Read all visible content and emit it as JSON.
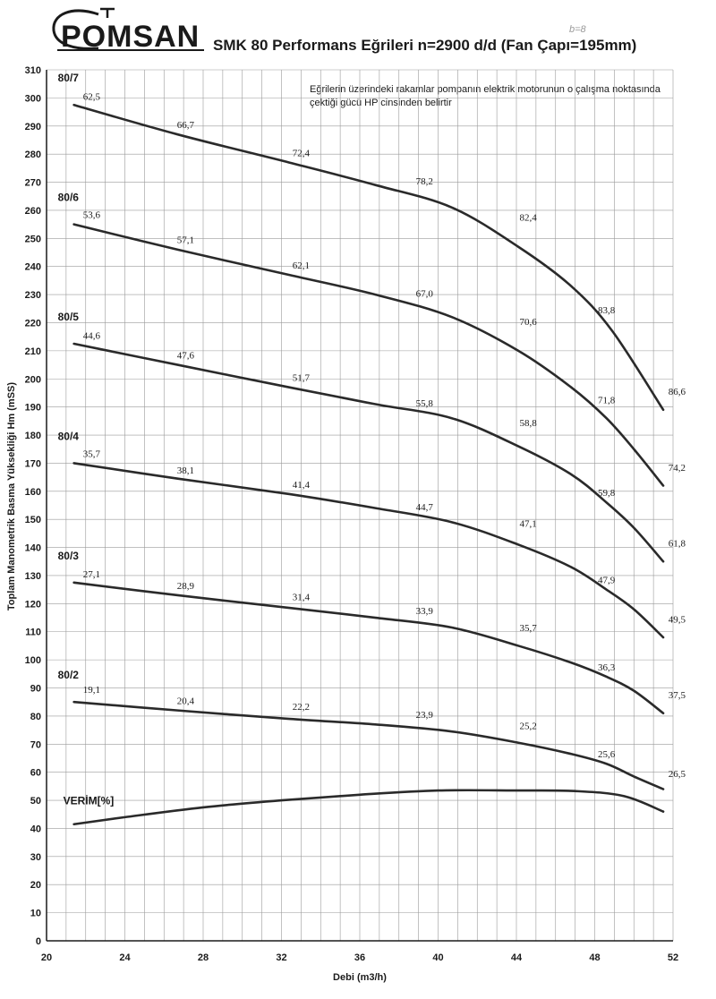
{
  "header": {
    "logo_text": "POMSAN",
    "title": "SMK 80 Performans Eğrileri  n=2900 d/d (Fan Çapı=195mm)",
    "handwritten_note": "b=8"
  },
  "note": {
    "line1": "Eğrilerin üzerindeki rakamlar pompanın elektrik motorunun  o çalışma noktasında",
    "line2": "çektiği gücü HP cinsinden belirtir"
  },
  "colors": {
    "curve": "#2a2a2a",
    "grid": "#9a9a9a",
    "background": "#ffffff"
  },
  "chart_data": {
    "type": "line",
    "title": "SMK 80 Performans Eğrileri  n=2900 d/d (Fan Çapı=195mm)",
    "xlabel": "Debi (m3/h)",
    "ylabel": "Toplam Manometrik Basma Yüksekliği Hm (mSS)",
    "xlim": [
      20,
      52
    ],
    "ylim": [
      0,
      310
    ],
    "x_ticks": [
      20,
      24,
      28,
      32,
      36,
      40,
      44,
      48,
      52
    ],
    "y_ticks": [
      0,
      10,
      20,
      30,
      40,
      50,
      60,
      70,
      80,
      90,
      100,
      110,
      120,
      130,
      140,
      150,
      160,
      170,
      180,
      190,
      200,
      210,
      220,
      230,
      240,
      250,
      260,
      270,
      280,
      290,
      300,
      310
    ],
    "grid": true,
    "series": [
      {
        "name": "80/7",
        "points": [
          [
            21.4,
            297.5
          ],
          [
            26.7,
            287
          ],
          [
            32.4,
            277
          ],
          [
            36.8,
            269
          ],
          [
            40.7,
            261
          ],
          [
            44.1,
            247
          ],
          [
            46.8,
            233
          ],
          [
            48.9,
            217
          ],
          [
            51.5,
            189
          ]
        ],
        "hp_labels": [
          {
            "x": 22.3,
            "y": 298,
            "text": "62,5"
          },
          {
            "x": 27.1,
            "y": 288,
            "text": "66,7"
          },
          {
            "x": 33.0,
            "y": 278,
            "text": "72,4"
          },
          {
            "x": 39.3,
            "y": 268,
            "text": "78,2"
          },
          {
            "x": 44.6,
            "y": 255,
            "text": "82,4"
          },
          {
            "x": 48.6,
            "y": 222,
            "text": "83,8"
          },
          {
            "x": 52.2,
            "y": 193,
            "text": "86,6"
          }
        ]
      },
      {
        "name": "80/6",
        "points": [
          [
            21.4,
            255
          ],
          [
            26.7,
            246
          ],
          [
            32.4,
            237
          ],
          [
            36.8,
            230
          ],
          [
            40.7,
            222
          ],
          [
            44.1,
            210
          ],
          [
            46.8,
            197
          ],
          [
            48.6,
            186
          ],
          [
            50.0,
            175
          ],
          [
            51.5,
            162
          ]
        ],
        "hp_labels": [
          {
            "x": 22.3,
            "y": 256,
            "text": "53,6"
          },
          {
            "x": 27.1,
            "y": 247,
            "text": "57,1"
          },
          {
            "x": 33.0,
            "y": 238,
            "text": "62,1"
          },
          {
            "x": 39.3,
            "y": 228,
            "text": "67,0"
          },
          {
            "x": 44.6,
            "y": 218,
            "text": "70,6"
          },
          {
            "x": 48.6,
            "y": 190,
            "text": "71,8"
          },
          {
            "x": 52.2,
            "y": 166,
            "text": "74,2"
          }
        ]
      },
      {
        "name": "80/5",
        "points": [
          [
            21.4,
            212.5
          ],
          [
            26.7,
            205
          ],
          [
            32.4,
            197
          ],
          [
            36.8,
            191
          ],
          [
            40.7,
            186
          ],
          [
            44.1,
            176
          ],
          [
            46.8,
            166
          ],
          [
            48.6,
            156
          ],
          [
            50.0,
            147
          ],
          [
            51.5,
            135
          ]
        ],
        "hp_labels": [
          {
            "x": 22.3,
            "y": 213,
            "text": "44,6"
          },
          {
            "x": 27.1,
            "y": 206,
            "text": "47,6"
          },
          {
            "x": 33.0,
            "y": 198,
            "text": "51,7"
          },
          {
            "x": 39.3,
            "y": 189,
            "text": "55,8"
          },
          {
            "x": 44.6,
            "y": 182,
            "text": "58,8"
          },
          {
            "x": 48.6,
            "y": 157,
            "text": "59,8"
          },
          {
            "x": 52.2,
            "y": 139,
            "text": "61,8"
          }
        ]
      },
      {
        "name": "80/4",
        "points": [
          [
            21.4,
            170
          ],
          [
            26.7,
            164.5
          ],
          [
            32.4,
            159
          ],
          [
            36.8,
            154
          ],
          [
            40.7,
            149
          ],
          [
            44.1,
            141
          ],
          [
            46.8,
            133
          ],
          [
            48.6,
            125
          ],
          [
            50.0,
            118
          ],
          [
            51.5,
            108
          ]
        ],
        "hp_labels": [
          {
            "x": 22.3,
            "y": 171,
            "text": "35,7"
          },
          {
            "x": 27.1,
            "y": 165,
            "text": "38,1"
          },
          {
            "x": 33.0,
            "y": 160,
            "text": "41,4"
          },
          {
            "x": 39.3,
            "y": 152,
            "text": "44,7"
          },
          {
            "x": 44.6,
            "y": 146,
            "text": "47,1"
          },
          {
            "x": 48.6,
            "y": 126,
            "text": "47,9"
          },
          {
            "x": 52.2,
            "y": 112,
            "text": "49,5"
          }
        ]
      },
      {
        "name": "80/3",
        "points": [
          [
            21.4,
            127.5
          ],
          [
            26.7,
            123
          ],
          [
            32.4,
            118.5
          ],
          [
            36.8,
            115
          ],
          [
            40.7,
            111.5
          ],
          [
            44.1,
            105
          ],
          [
            46.8,
            99
          ],
          [
            48.6,
            94
          ],
          [
            50.0,
            89
          ],
          [
            51.5,
            81
          ]
        ],
        "hp_labels": [
          {
            "x": 22.3,
            "y": 128,
            "text": "27,1"
          },
          {
            "x": 27.1,
            "y": 124,
            "text": "28,9"
          },
          {
            "x": 33.0,
            "y": 120,
            "text": "31,4"
          },
          {
            "x": 39.3,
            "y": 115,
            "text": "33,9"
          },
          {
            "x": 44.6,
            "y": 109,
            "text": "35,7"
          },
          {
            "x": 48.6,
            "y": 95,
            "text": "36,3"
          },
          {
            "x": 52.2,
            "y": 85,
            "text": "37,5"
          }
        ]
      },
      {
        "name": "80/2",
        "points": [
          [
            21.4,
            85
          ],
          [
            26.7,
            82
          ],
          [
            32.4,
            79
          ],
          [
            36.8,
            77
          ],
          [
            40.7,
            74.5
          ],
          [
            44.1,
            70.5
          ],
          [
            46.8,
            66.5
          ],
          [
            48.6,
            63
          ],
          [
            50.0,
            58.5
          ],
          [
            51.5,
            54
          ]
        ],
        "hp_labels": [
          {
            "x": 22.3,
            "y": 87,
            "text": "19,1"
          },
          {
            "x": 27.1,
            "y": 83,
            "text": "20,4"
          },
          {
            "x": 33.0,
            "y": 81,
            "text": "22,2"
          },
          {
            "x": 39.3,
            "y": 78,
            "text": "23,9"
          },
          {
            "x": 44.6,
            "y": 74,
            "text": "25,2"
          },
          {
            "x": 48.6,
            "y": 64,
            "text": "25,6"
          },
          {
            "x": 52.2,
            "y": 57,
            "text": "26,5"
          }
        ]
      },
      {
        "name": "VERİM[%]",
        "points": [
          [
            21.4,
            41.5
          ],
          [
            24,
            44
          ],
          [
            28,
            47.5
          ],
          [
            32,
            50
          ],
          [
            36,
            52
          ],
          [
            40,
            53.5
          ],
          [
            44,
            53.5
          ],
          [
            47,
            53.3
          ],
          [
            49.5,
            51.5
          ],
          [
            51.5,
            46
          ]
        ],
        "hp_labels": []
      }
    ]
  }
}
